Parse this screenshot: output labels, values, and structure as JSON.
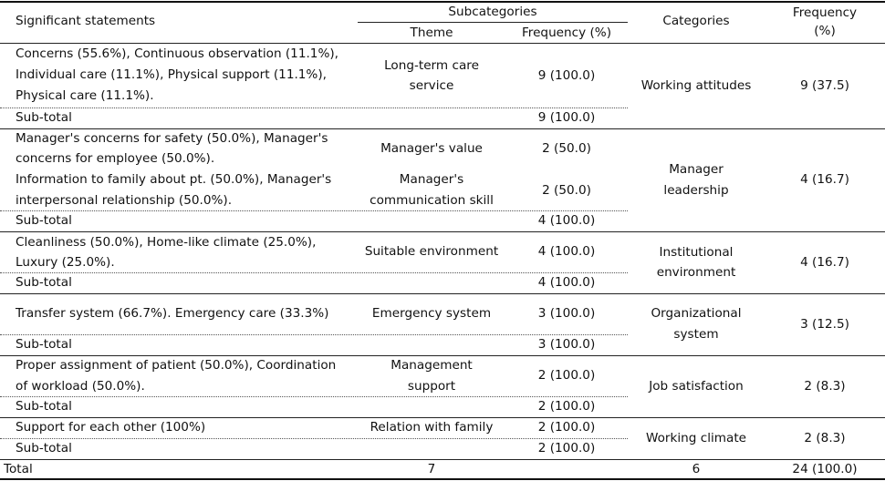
{
  "header": {
    "col1": "Significant statements",
    "subcategories": "Subcategories",
    "theme": "Theme",
    "sub_frequency": "Frequency (%)",
    "categories": "Categories",
    "frequency": "Frequency",
    "frequency_pct": "(%)"
  },
  "groups": [
    {
      "category": [
        "Working attitudes"
      ],
      "frequency": "9 (37.5)",
      "themes": [
        {
          "statements": [
            "Concerns (55.6%), Continuous observation (11.1%),",
            "Individual care (11.1%), Physical support (11.1%),",
            "Physical care (11.1%)."
          ],
          "theme": [
            "Long-term care",
            "service"
          ],
          "freq": "9 (100.0)"
        }
      ],
      "subtotal_label": "Sub-total",
      "subtotal_freq": "9 (100.0)"
    },
    {
      "category": [
        "Manager",
        "leadership"
      ],
      "frequency": "4 (16.7)",
      "themes": [
        {
          "statements": [
            "Manager's concerns for safety (50.0%), Manager's",
            "concerns for employee (50.0%)."
          ],
          "theme": [
            "Manager's value"
          ],
          "freq": "2 (50.0)"
        },
        {
          "statements": [
            "Information to family about pt. (50.0%), Manager's",
            "interpersonal relationship (50.0%)."
          ],
          "theme": [
            "Manager's",
            "communication skill"
          ],
          "freq": "2 (50.0)"
        }
      ],
      "subtotal_label": "Sub-total",
      "subtotal_freq": "4 (100.0)"
    },
    {
      "category": [
        "Institutional",
        "environment"
      ],
      "frequency": "4 (16.7)",
      "themes": [
        {
          "statements": [
            "Cleanliness (50.0%), Home-like climate (25.0%),",
            "Luxury (25.0%)."
          ],
          "theme": [
            "Suitable environment"
          ],
          "freq": "4 (100.0)"
        }
      ],
      "subtotal_label": "Sub-total",
      "subtotal_freq": "4 (100.0)"
    },
    {
      "category": [
        "Organizational",
        "system"
      ],
      "frequency": "3 (12.5)",
      "themes": [
        {
          "statements": [
            "Transfer system (66.7%). Emergency care (33.3%)"
          ],
          "theme": [
            "Emergency system"
          ],
          "freq": "3 (100.0)"
        }
      ],
      "subtotal_label": "Sub-total",
      "subtotal_freq": "3 (100.0)"
    },
    {
      "category": [
        "Job satisfaction"
      ],
      "frequency": "2 (8.3)",
      "themes": [
        {
          "statements": [
            "Proper assignment of patient (50.0%), Coordination",
            "of workload (50.0%)."
          ],
          "theme": [
            "Management",
            "support"
          ],
          "freq": "2 (100.0)"
        }
      ],
      "subtotal_label": "Sub-total",
      "subtotal_freq": "2 (100.0)"
    },
    {
      "category": [
        "Working climate"
      ],
      "frequency": "2 (8.3)",
      "themes": [
        {
          "statements": [
            "Support for each other (100%)"
          ],
          "theme": [
            "Relation with family"
          ],
          "freq": "2 (100.0)"
        }
      ],
      "subtotal_label": "Sub-total",
      "subtotal_freq": "2 (100.0)"
    }
  ],
  "total": {
    "label": "Total",
    "themes": "7",
    "categories": "6",
    "frequency": "24 (100.0)"
  }
}
